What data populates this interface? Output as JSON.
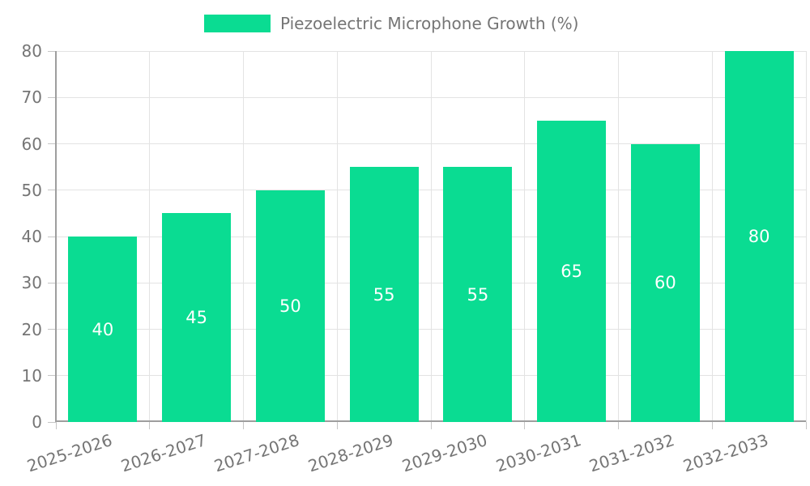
{
  "chart_data": {
    "type": "bar",
    "legend": "Piezoelectric Microphone Growth (%)",
    "categories": [
      "2025-2026",
      "2026-2027",
      "2027-2028",
      "2028-2029",
      "2029-2030",
      "2030-2031",
      "2031-2032",
      "2032-2033"
    ],
    "values": [
      40,
      45,
      50,
      55,
      55,
      65,
      60,
      80
    ],
    "value_labels": [
      "40",
      "45",
      "50",
      "55",
      "55",
      "65",
      "60",
      "80"
    ],
    "yticks": [
      "0",
      "10",
      "20",
      "30",
      "40",
      "50",
      "60",
      "70",
      "80"
    ],
    "ylim": [
      0,
      80
    ],
    "xlabel": "",
    "ylabel": "",
    "grid": "on",
    "legend_position": "top-center",
    "colors": {
      "bar": "#0adc92",
      "grid": "#e3e3e3",
      "axis": "#9e9e9e",
      "tick": "#c6c6c6",
      "text": "#757575",
      "value_label": "#ffffff"
    }
  }
}
